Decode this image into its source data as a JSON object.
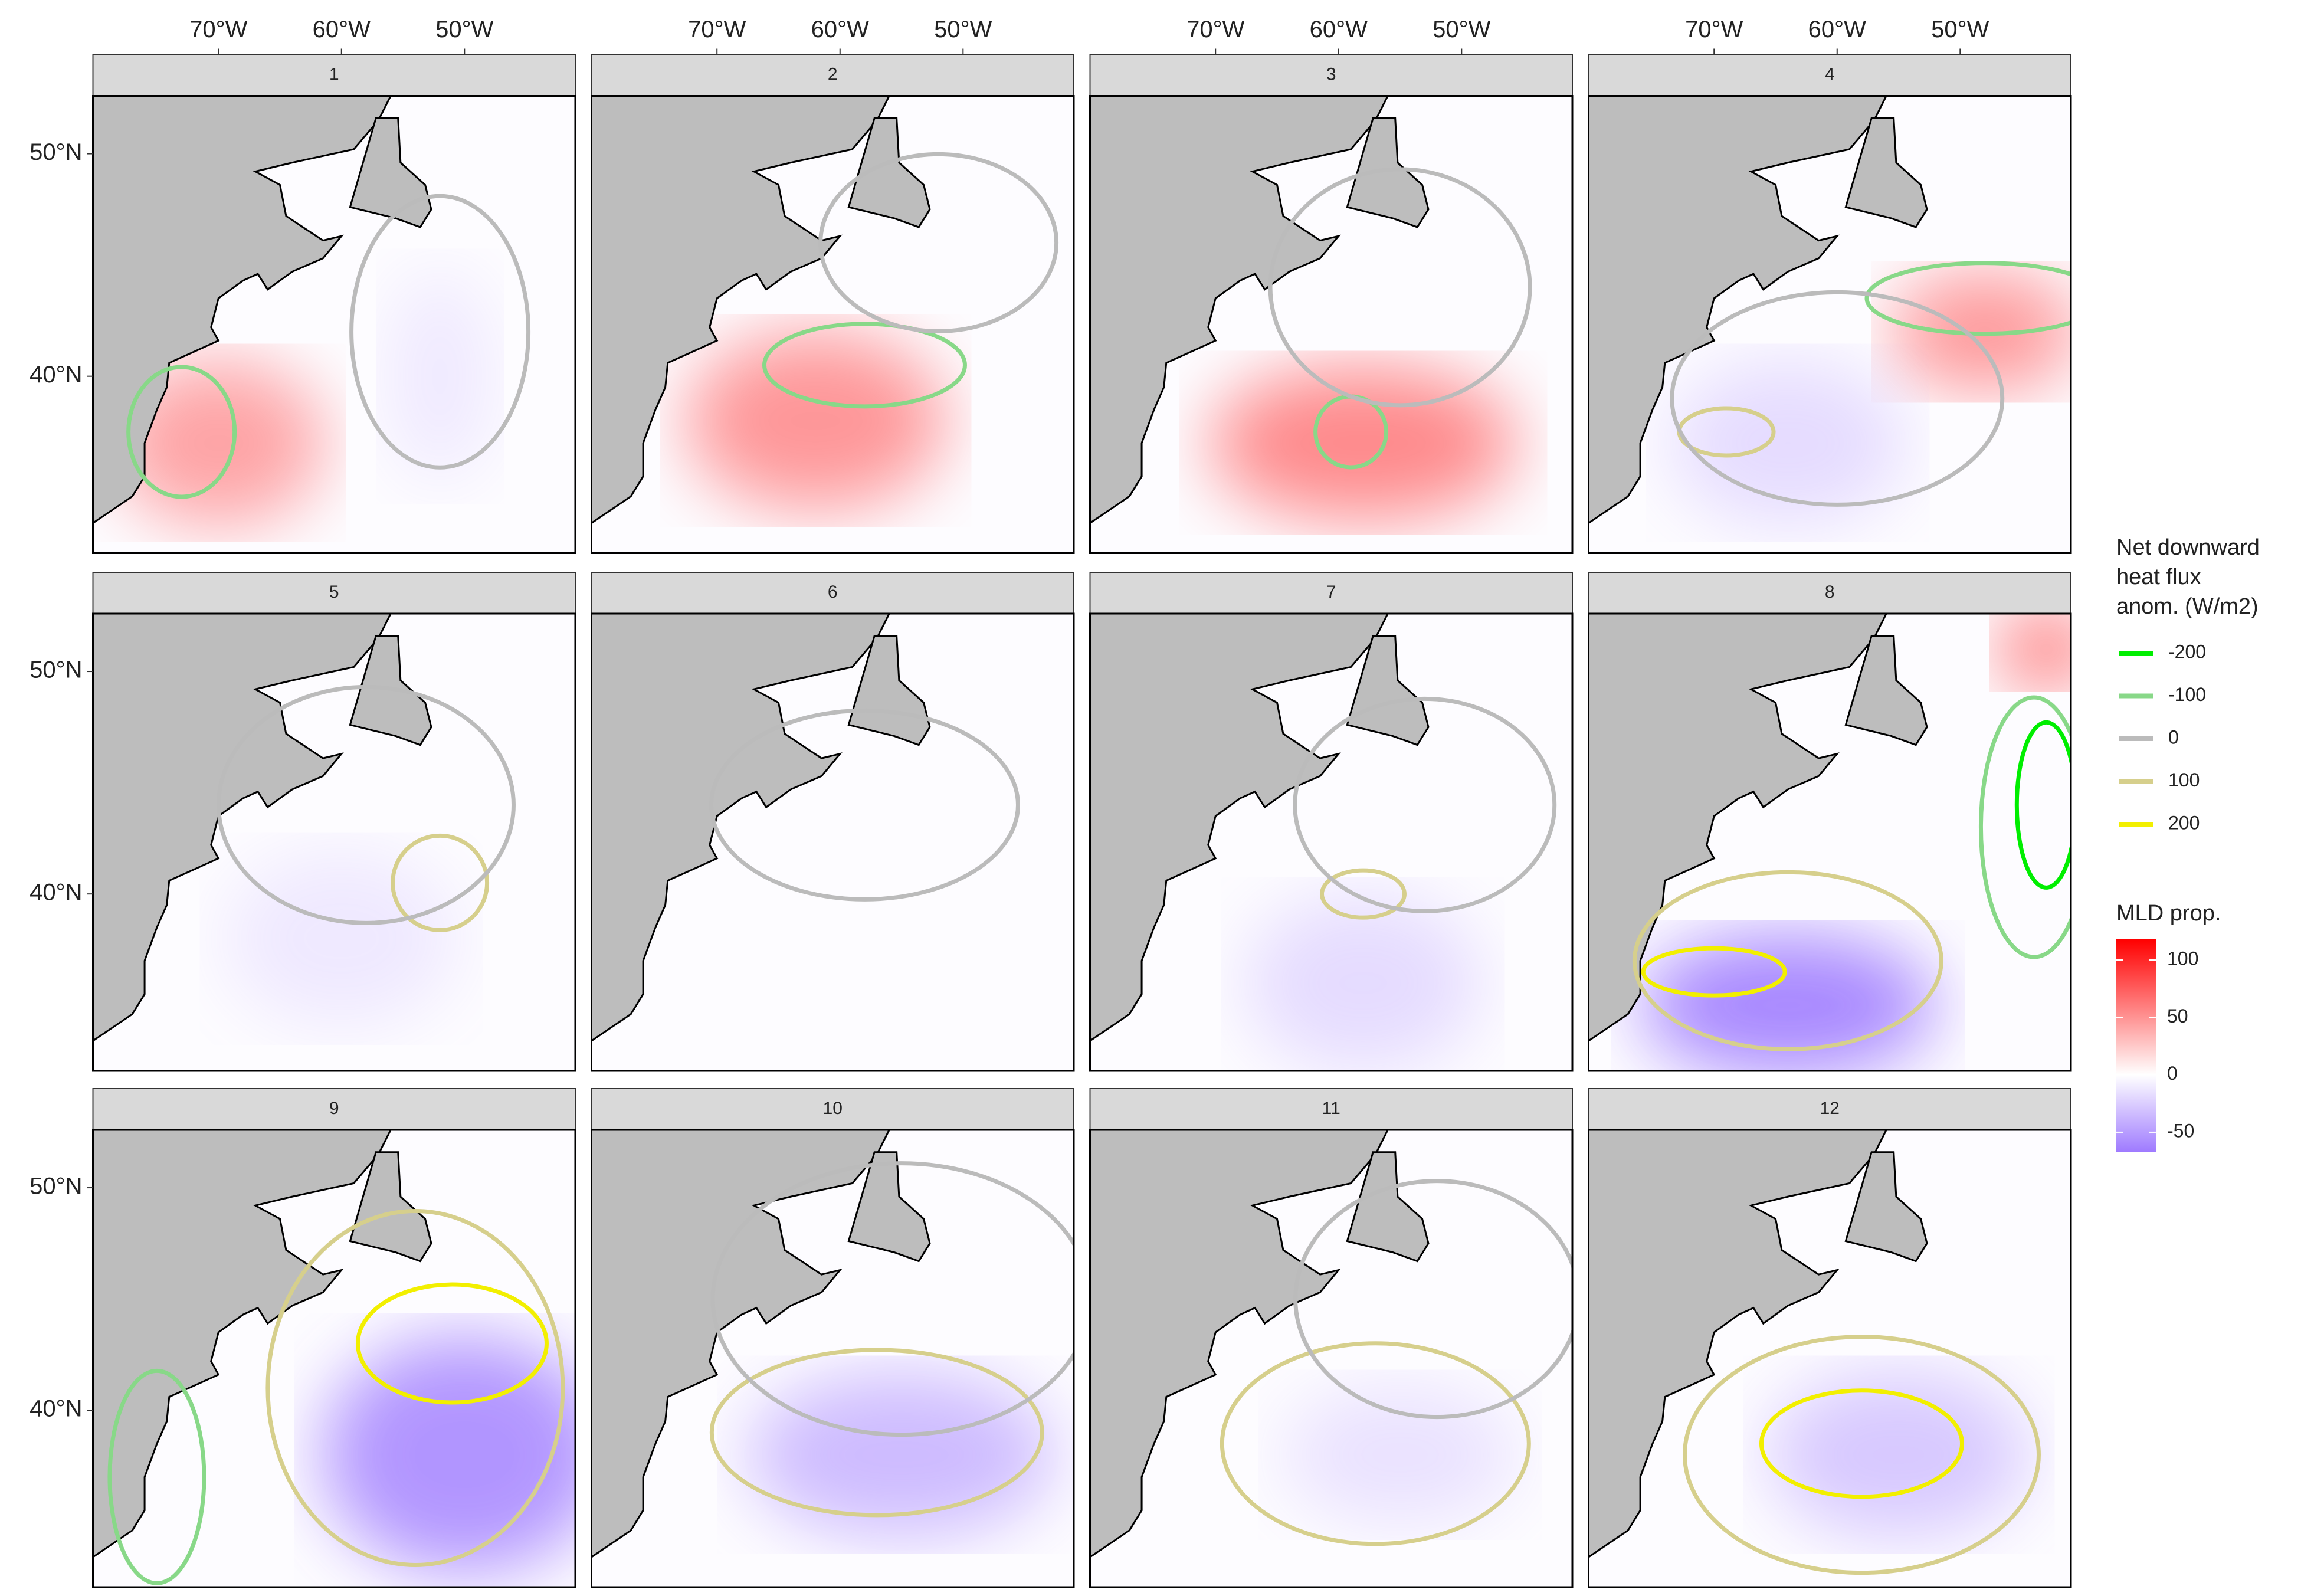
{
  "panels": [
    "1",
    "2",
    "3",
    "4",
    "5",
    "6",
    "7",
    "8",
    "9",
    "10",
    "11",
    "12"
  ],
  "x_axis": {
    "lim": [
      -80.2,
      -41.0
    ],
    "ticks": [
      {
        "value": -70,
        "label": "70°W"
      },
      {
        "value": -60,
        "label": "60°W"
      },
      {
        "value": -50,
        "label": "50°W"
      }
    ]
  },
  "y_axis": {
    "lim": [
      32.05,
      52.6
    ],
    "ticks": [
      {
        "value": 50,
        "label": "50°N"
      },
      {
        "value": 40,
        "label": "40°N"
      }
    ]
  },
  "legend_flux": {
    "title": [
      "Net downward",
      "heat flux",
      "anom. (W/m2)"
    ],
    "entries": [
      {
        "label": "-200",
        "color": "#00ee00"
      },
      {
        "label": "-100",
        "color": "#88d888"
      },
      {
        "label": "0",
        "color": "#bbbbbb"
      },
      {
        "label": "100",
        "color": "#d6cf8c"
      },
      {
        "label": "200",
        "color": "#f2ef00"
      }
    ]
  },
  "legend_mld": {
    "title": "MLD prop.",
    "lim": [
      -67,
      118
    ],
    "ticks": [
      100,
      50,
      0,
      -50
    ],
    "colors": {
      "high": "#ff0000",
      "mid": "#ffffff",
      "low": "#9f7bff"
    }
  }
}
